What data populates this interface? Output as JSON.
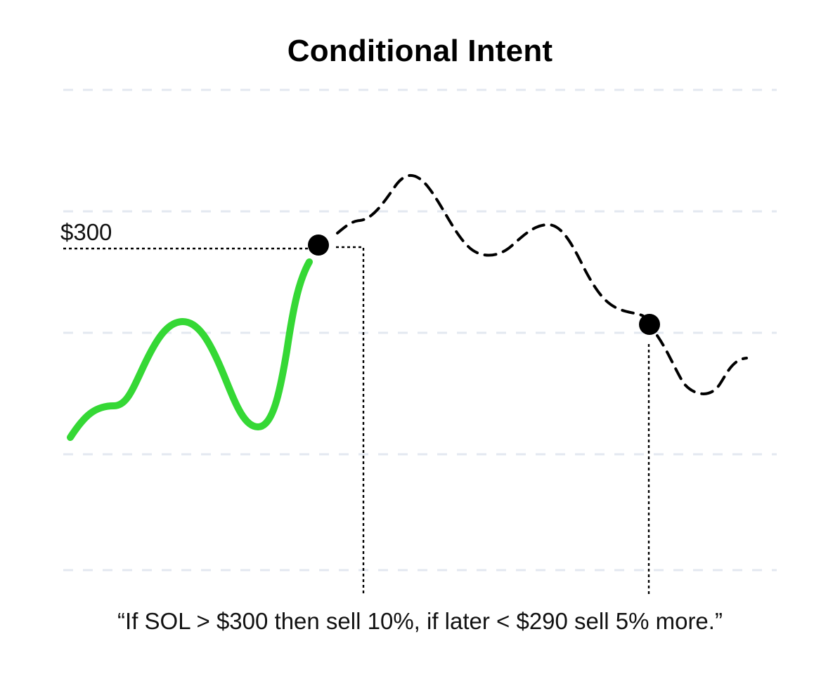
{
  "title": "Conditional Intent",
  "price_label": "$300",
  "caption": "“If SOL > $300 then sell 10%, if later < $290 sell 5% more.”",
  "colors": {
    "realized_line": "#35d835",
    "projected_line": "#000000",
    "gridline": "#e3e8f0",
    "marker": "#000000"
  },
  "line_styles": {
    "realized": "solid",
    "projected": "dashed",
    "guides": "dotted"
  },
  "markers": [
    {
      "name": "trigger-above-300"
    },
    {
      "name": "trigger-below-290"
    }
  ]
}
